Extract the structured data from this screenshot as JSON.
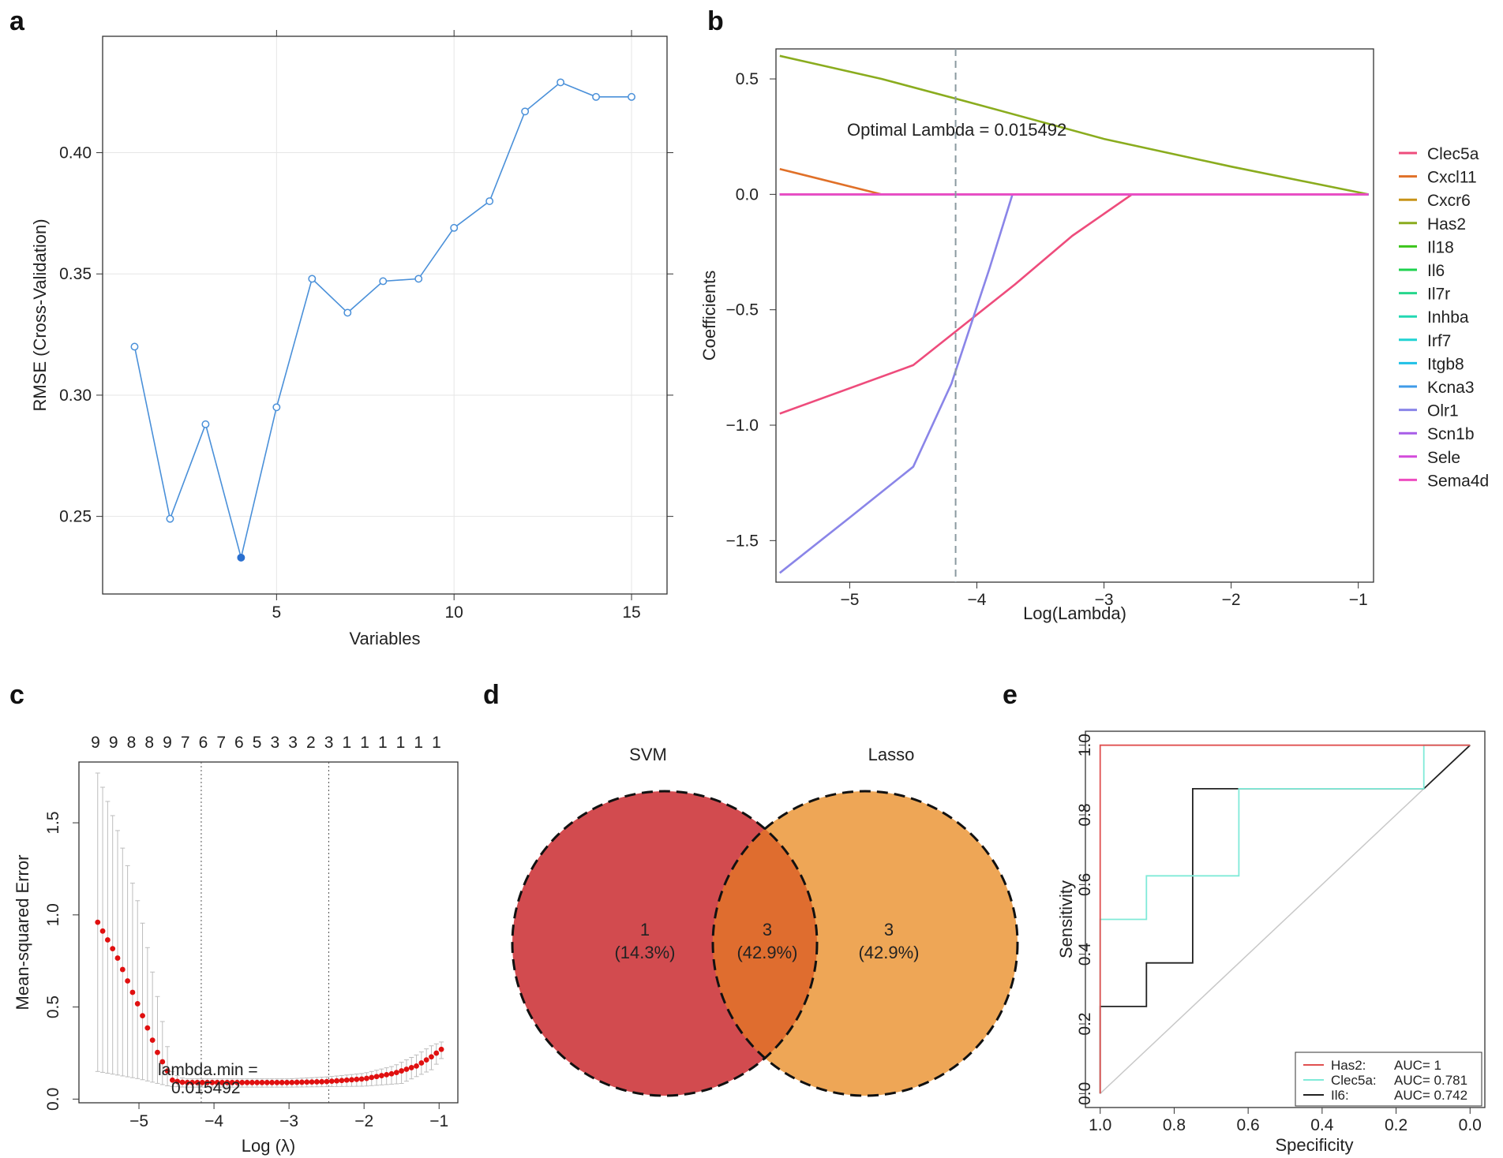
{
  "panels": {
    "a": {
      "label": "a"
    },
    "b": {
      "label": "b"
    },
    "c": {
      "label": "c"
    },
    "d": {
      "label": "d"
    },
    "e": {
      "label": "e"
    }
  },
  "chart_data": [
    {
      "id": "a",
      "type": "line",
      "title": "",
      "xlabel": "Variables",
      "ylabel": "RMSE (Cross-Validation)",
      "x": [
        1,
        2,
        3,
        4,
        5,
        6,
        7,
        8,
        9,
        10,
        11,
        12,
        13,
        14,
        15
      ],
      "values": [
        0.32,
        0.249,
        0.288,
        0.233,
        0.295,
        0.348,
        0.334,
        0.347,
        0.348,
        0.369,
        0.38,
        0.417,
        0.429,
        0.423,
        0.423
      ],
      "highlight_index": 3,
      "xlim": [
        0.1,
        16.0
      ],
      "ylim": [
        0.218,
        0.448
      ],
      "xticks": [
        5,
        10,
        15
      ],
      "xtick_labels": [
        "5",
        "10",
        "15"
      ],
      "yticks": [
        0.25,
        0.3,
        0.35,
        0.4
      ],
      "ytick_labels": [
        "0.25",
        "0.30",
        "0.35",
        "0.40"
      ],
      "top_ticks": [
        5,
        10,
        15
      ],
      "grid": true,
      "color": "#4a90d9"
    },
    {
      "id": "b",
      "type": "line",
      "title": "",
      "xlabel": "Log(Lambda)",
      "ylabel": "Coefficients",
      "xlim": [
        -5.58,
        -0.88
      ],
      "ylim": [
        -1.68,
        0.63
      ],
      "xticks": [
        -5,
        -4,
        -3,
        -2,
        -1
      ],
      "xtick_labels": [
        "−5",
        "−4",
        "−3",
        "−2",
        "−1"
      ],
      "yticks": [
        0.5,
        0.0,
        -0.5,
        -1.0,
        -1.5
      ],
      "ytick_labels": [
        "0.5",
        "0.0",
        "−0.5",
        "−1.0",
        "−1.5"
      ],
      "vline": -4.167,
      "annotation": "Optimal Lambda = 0.015492",
      "series": [
        {
          "name": "Clec5a",
          "color": "#ee4c7c",
          "x": [
            -5.55,
            -4.5,
            -3.7,
            -3.25,
            -2.78,
            -0.92
          ],
          "y": [
            -0.95,
            -0.74,
            -0.39,
            -0.18,
            0.0,
            0.0
          ]
        },
        {
          "name": "Cxcl11",
          "color": "#e07028",
          "x": [
            -5.55,
            -4.75,
            -0.92
          ],
          "y": [
            0.11,
            0.0,
            0.0
          ]
        },
        {
          "name": "Cxcr6",
          "color": "#c79318",
          "x": [
            -5.55,
            -0.92
          ],
          "y": [
            0.0,
            0.0
          ]
        },
        {
          "name": "Has2",
          "color": "#8aac1e",
          "x": [
            -5.55,
            -4.75,
            -4.0,
            -3.0,
            -2.0,
            -0.92
          ],
          "y": [
            0.6,
            0.5,
            0.39,
            0.24,
            0.12,
            0.0
          ]
        },
        {
          "name": "Il18",
          "color": "#3cc51c",
          "x": [
            -5.55,
            -0.92
          ],
          "y": [
            0.0,
            0.0
          ]
        },
        {
          "name": "Il6",
          "color": "#1ed24f",
          "x": [
            -5.55,
            -0.92
          ],
          "y": [
            0.0,
            0.0
          ]
        },
        {
          "name": "Il7r",
          "color": "#25d68c",
          "x": [
            -5.55,
            -0.92
          ],
          "y": [
            0.0,
            0.0
          ]
        },
        {
          "name": "Inhba",
          "color": "#24d8b3",
          "x": [
            -5.55,
            -0.92
          ],
          "y": [
            0.0,
            0.0
          ]
        },
        {
          "name": "Irf7",
          "color": "#20d3d3",
          "x": [
            -5.55,
            -0.92
          ],
          "y": [
            0.0,
            0.0
          ]
        },
        {
          "name": "Itgb8",
          "color": "#1fc0e6",
          "x": [
            -5.55,
            -0.92
          ],
          "y": [
            0.0,
            0.0
          ]
        },
        {
          "name": "Kcna3",
          "color": "#3f9be8",
          "x": [
            -5.55,
            -0.92
          ],
          "y": [
            0.0,
            0.0
          ]
        },
        {
          "name": "Olr1",
          "color": "#8a85e8",
          "x": [
            -5.55,
            -5.0,
            -4.5,
            -4.2,
            -3.9,
            -3.72,
            -0.92
          ],
          "y": [
            -1.64,
            -1.4,
            -1.18,
            -0.82,
            -0.32,
            0.0,
            0.0
          ]
        },
        {
          "name": "Scn1b",
          "color": "#a75de8",
          "x": [
            -5.55,
            -0.92
          ],
          "y": [
            0.0,
            0.0
          ]
        },
        {
          "name": "Sele",
          "color": "#d34bdb",
          "x": [
            -5.55,
            -0.92
          ],
          "y": [
            0.0,
            0.0
          ]
        },
        {
          "name": "Sema4d",
          "color": "#ee4dc0",
          "x": [
            -5.55,
            -0.92
          ],
          "y": [
            0.0,
            0.0
          ]
        }
      ]
    },
    {
      "id": "c",
      "type": "scatter",
      "title": "",
      "xlabel": "Log (λ)",
      "ylabel": "Mean-squared Error",
      "xlim": [
        -5.8,
        -0.75
      ],
      "ylim": [
        -0.02,
        1.83
      ],
      "xticks": [
        -5,
        -4,
        -3,
        -2,
        -1
      ],
      "xtick_labels": [
        "−5",
        "−4",
        "−3",
        "−2",
        "−1"
      ],
      "yticks": [
        0.0,
        0.5,
        1.0,
        1.5
      ],
      "ytick_labels": [
        "0.0",
        "0.5",
        "1.0",
        "1.5"
      ],
      "top_counts": [
        "9",
        "9",
        "8",
        "8",
        "9",
        "7",
        "6",
        "7",
        "6",
        "5",
        "3",
        "3",
        "2",
        "3",
        "1",
        "1",
        "1",
        "1",
        "1",
        "1"
      ],
      "vlines": [
        -4.17,
        -2.47
      ],
      "annotation_line1": "lambda.min =",
      "annotation_line2": "0.015492",
      "xrange": [
        -5.55,
        -0.97
      ],
      "n_points": 70,
      "curve_x": [
        -5.55,
        -5.3,
        -5.0,
        -4.75,
        -4.55,
        -4.4,
        -4.0,
        -3.5,
        -3.0,
        -2.5,
        -2.0,
        -1.6,
        -1.3,
        -1.1,
        -0.97
      ],
      "curve_y": [
        0.96,
        0.78,
        0.5,
        0.25,
        0.1,
        0.09,
        0.09,
        0.09,
        0.09,
        0.095,
        0.11,
        0.14,
        0.18,
        0.23,
        0.27
      ],
      "err_upper_x": [
        -5.55,
        -5.3,
        -5.0,
        -4.75,
        -4.55,
        -4.4,
        -4.0,
        -3.0,
        -2.5,
        -2.0,
        -1.6,
        -1.3,
        -1.1,
        -0.97
      ],
      "err_upper_y": [
        1.77,
        1.48,
        1.05,
        0.55,
        0.14,
        0.11,
        0.11,
        0.11,
        0.12,
        0.14,
        0.18,
        0.24,
        0.29,
        0.31
      ],
      "err_lower_x": [
        -5.55,
        -5.0,
        -4.6,
        -4.4,
        -4.0,
        -3.0,
        -2.0,
        -1.5,
        -1.1,
        -0.97
      ],
      "err_lower_y": [
        0.15,
        0.11,
        0.07,
        0.065,
        0.065,
        0.065,
        0.07,
        0.085,
        0.16,
        0.22
      ]
    },
    {
      "id": "d",
      "type": "venn",
      "sets": [
        {
          "name": "SVM",
          "color": "#d24b4f"
        },
        {
          "name": "Lasso",
          "color": "#eea656"
        }
      ],
      "overlap_color": "#df6d2f",
      "regions": [
        {
          "count": "1",
          "percent": "(14.3%)"
        },
        {
          "count": "3",
          "percent": "(42.9%)"
        },
        {
          "count": "3",
          "percent": "(42.9%)"
        }
      ]
    },
    {
      "id": "e",
      "type": "line",
      "title": "",
      "xlabel": "Specificity",
      "ylabel": "Sensitivity",
      "xlim": [
        1.04,
        -0.04
      ],
      "ylim": [
        -0.04,
        1.04
      ],
      "xticks": [
        1.0,
        0.8,
        0.6,
        0.4,
        0.2,
        0.0
      ],
      "xtick_labels": [
        "1.0",
        "0.8",
        "0.6",
        "0.4",
        "0.2",
        "0.0"
      ],
      "yticks": [
        0.0,
        0.2,
        0.4,
        0.6,
        0.8,
        1.0
      ],
      "ytick_labels": [
        "0.0",
        "0.2",
        "0.4",
        "0.6",
        "0.8",
        "1.0"
      ],
      "series": [
        {
          "name": "Has2",
          "auc": "AUC= 1",
          "color": "#f08080",
          "x": [
            1.0,
            1.0,
            1.0,
            0.0
          ],
          "y": [
            0.0,
            0.5,
            1.0,
            1.0
          ],
          "edge_color": "#e05050"
        },
        {
          "name": "Clec5a",
          "auc": "AUC= 0.781",
          "color": "#80ead8",
          "x": [
            1.0,
            1.0,
            1.0,
            1.0,
            0.875,
            0.875,
            0.625,
            0.625,
            0.125,
            0.125,
            0.0
          ],
          "y": [
            0.0,
            0.25,
            0.25,
            0.5,
            0.5,
            0.625,
            0.625,
            0.875,
            0.875,
            1.0,
            1.0
          ]
        },
        {
          "name": "Il6",
          "auc": "AUC= 0.742",
          "color": "#222222",
          "x": [
            1.0,
            1.0,
            0.875,
            0.875,
            0.75,
            0.75,
            0.125,
            0.0
          ],
          "y": [
            0.0,
            0.25,
            0.25,
            0.375,
            0.375,
            0.875,
            0.875,
            1.0
          ]
        }
      ],
      "legend_labels": [
        "Has2:",
        "Clec5a:",
        "Il6:"
      ],
      "diagonal_color": "#c8c8c8"
    }
  ]
}
